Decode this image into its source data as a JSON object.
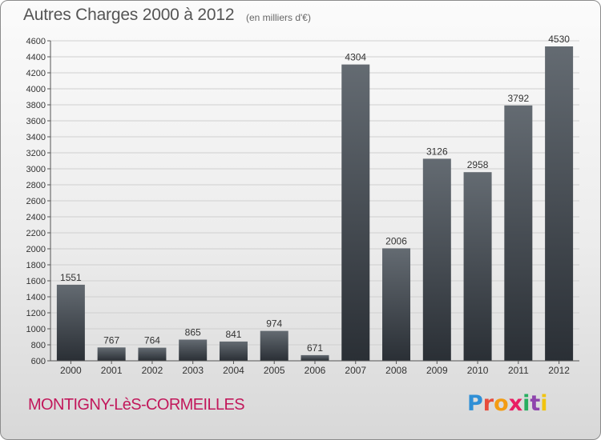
{
  "header": {
    "title": "Autres Charges 2000 à 2012",
    "subtitle": "(en milliers d'€)"
  },
  "footer": {
    "commune": "MONTIGNY-LèS-CORMEILLES",
    "brand_letters": [
      "P",
      "r",
      "o",
      "x",
      "i",
      "t",
      "i"
    ],
    "brand_colors": [
      "#2f8fd6",
      "#e74c3c",
      "#f39c12",
      "#e91e63",
      "#27ae60",
      "#8e44ad",
      "#f1c40f"
    ]
  },
  "chart_data": {
    "type": "bar",
    "title": "Autres Charges 2000 à 2012",
    "subtitle": "(en milliers d'€)",
    "categories": [
      "2000",
      "2001",
      "2002",
      "2003",
      "2004",
      "2005",
      "2006",
      "2007",
      "2008",
      "2009",
      "2010",
      "2011",
      "2012"
    ],
    "values": [
      1551,
      767,
      764,
      865,
      841,
      974,
      671,
      4304,
      2006,
      3126,
      2958,
      3792,
      4530
    ],
    "data_labels": [
      "1551",
      "767",
      "764",
      "865",
      "841",
      "974",
      "671",
      "4304",
      "2006",
      "3126",
      "2958",
      "3792",
      "4530"
    ],
    "ylim": [
      600,
      4600
    ],
    "yticks": [
      600,
      800,
      1000,
      1200,
      1400,
      1600,
      1800,
      2000,
      2200,
      2400,
      2600,
      2800,
      3000,
      3200,
      3400,
      3600,
      3800,
      4000,
      4200,
      4400,
      4600
    ],
    "grid": true,
    "legend": "none",
    "bar_color_top": "#646b72",
    "bar_color_bottom": "#2a2f35"
  }
}
